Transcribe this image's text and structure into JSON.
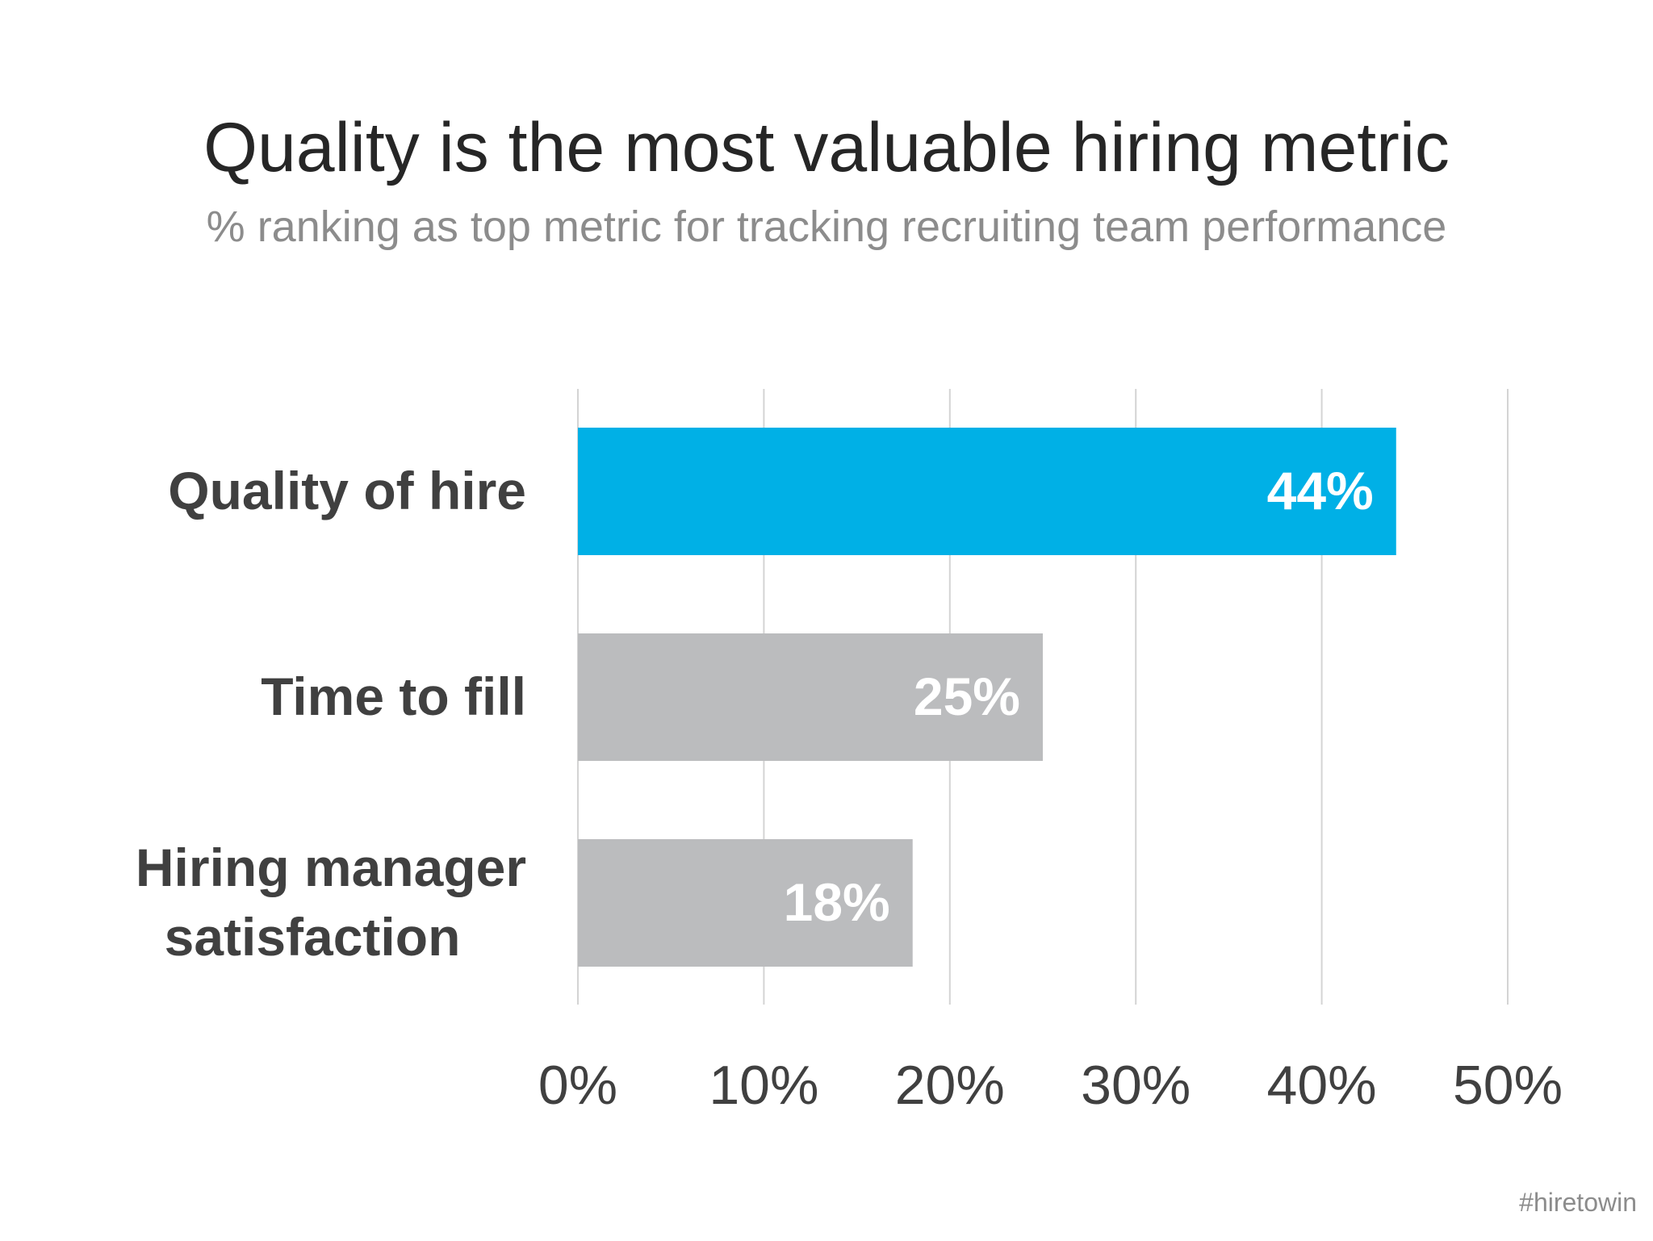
{
  "title": "Quality is the most valuable hiring metric",
  "subtitle": "% ranking as top metric for tracking recruiting team performance",
  "watermark": "#hiretowin",
  "colors": {
    "highlight": "#00b0e6",
    "bar": "#bbbcbe",
    "grid": "#d4d4d4",
    "category_text": "#404040",
    "tick_text": "#404040",
    "bar_label": "#ffffff"
  },
  "chart_data": {
    "type": "bar",
    "orientation": "horizontal",
    "title": "Quality is the most valuable hiring metric",
    "subtitle": "% ranking as top metric for tracking recruiting team performance",
    "categories": [
      [
        "Quality of hire"
      ],
      [
        "Time to fill"
      ],
      [
        "Hiring manager",
        "satisfaction"
      ]
    ],
    "values": [
      44,
      25,
      18
    ],
    "value_labels": [
      "44%",
      "25%",
      "18%"
    ],
    "highlight_index": 0,
    "xlim": [
      0,
      50
    ],
    "xticks": [
      0,
      10,
      20,
      30,
      40,
      50
    ],
    "xtick_labels": [
      "0%",
      "10%",
      "20%",
      "30%",
      "40%",
      "50%"
    ],
    "grid": true,
    "xlabel": "",
    "ylabel": ""
  }
}
